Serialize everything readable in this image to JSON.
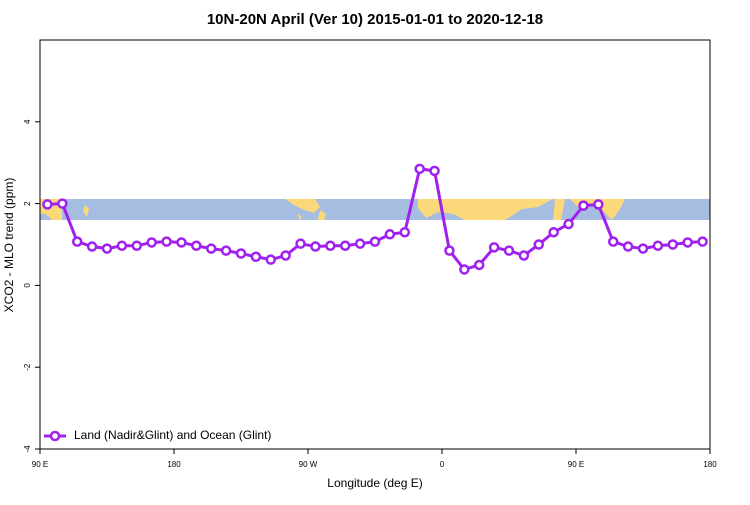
{
  "chart_data": {
    "type": "line",
    "title": "10N-20N April (Ver 10)   2015-01-01 to 2020-12-18",
    "xlabel": "Longitude (deg E)",
    "ylabel": "XCO2 - MLO trend (ppm)",
    "x": [
      95,
      105,
      115,
      125,
      135,
      145,
      155,
      165,
      175,
      185,
      195,
      205,
      215,
      225,
      235,
      245,
      255,
      265,
      275,
      285,
      295,
      305,
      315,
      325,
      335,
      345,
      355,
      365,
      375,
      385,
      395,
      405,
      415,
      425,
      435,
      445,
      455,
      465,
      475,
      485,
      495,
      505,
      515,
      525,
      535
    ],
    "series": [
      {
        "name": "Land (Nadir&Glint) and Ocean (Glint)",
        "color": "#a020f0",
        "values": [
          1.98,
          2.0,
          1.07,
          0.95,
          0.9,
          0.97,
          0.97,
          1.05,
          1.07,
          1.05,
          0.97,
          0.9,
          0.85,
          0.78,
          0.7,
          0.63,
          0.73,
          1.02,
          0.95,
          0.97,
          0.97,
          1.02,
          1.07,
          1.25,
          1.3,
          2.85,
          2.8,
          0.85,
          0.39,
          0.5,
          0.93,
          0.85,
          0.73,
          1.0,
          1.3,
          1.5,
          1.95,
          1.98,
          1.07,
          0.95,
          0.9,
          0.97,
          1.0,
          1.05,
          1.07
        ]
      }
    ],
    "xlim": [
      90,
      540
    ],
    "xticks": [
      {
        "value": 90,
        "label": "90 E"
      },
      180,
      {
        "value": 270,
        "label": "90 W"
      },
      {
        "value": 360,
        "label": "0"
      },
      {
        "value": 450,
        "label": "90 E"
      },
      {
        "value": 540,
        "label": "180"
      }
    ],
    "ylim": [
      -4,
      6
    ],
    "yticks": [
      -4,
      -2,
      0,
      2,
      4
    ],
    "legend": "bottom-left"
  }
}
